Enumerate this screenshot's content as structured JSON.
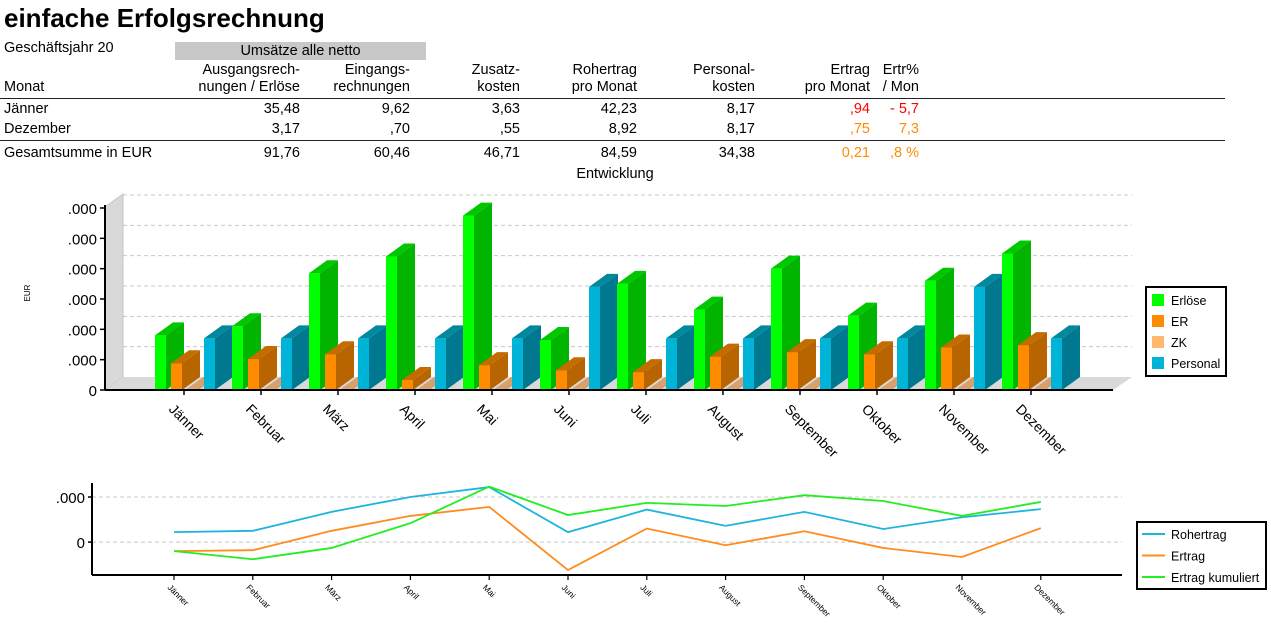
{
  "title": "einfache Erfolgsrechnung",
  "fiscal_year_label": "Geschäftsjahr 20",
  "group_header": "Umsätze alle netto",
  "table": {
    "columns": [
      {
        "line1": "",
        "line2": "Monat"
      },
      {
        "line1": "Ausgangsrech-",
        "line2": "nungen / Erlöse"
      },
      {
        "line1": "Eingangs-",
        "line2": "rechnungen"
      },
      {
        "line1": "Zusatz-",
        "line2": "kosten"
      },
      {
        "line1": "Rohertrag",
        "line2": "pro Monat"
      },
      {
        "line1": "Personal-",
        "line2": "kosten"
      },
      {
        "line1": "Ertrag",
        "line2": "pro Monat"
      },
      {
        "line1": "Ertr%",
        "line2": "/ Mon"
      }
    ],
    "rows": [
      {
        "month": "Jänner",
        "cells": [
          "35,48",
          "9,62",
          "3,63",
          "42,23",
          "8,17",
          ",94",
          "- 5,7"
        ],
        "result_color": "#ff0000"
      },
      {
        "month": "Dezember",
        "cells": [
          "3,17",
          ",70",
          ",55",
          "8,92",
          "8,17",
          ",75",
          "7,3"
        ],
        "result_color": "#ff8c00"
      }
    ],
    "total": {
      "label": "Gesamtsumme in EUR",
      "cells": [
        "91,76",
        "60,46",
        "46,71",
        "84,59",
        "34,38",
        "0,21",
        ",8 %"
      ],
      "result_color": "#ff8c00"
    }
  },
  "chart_data": [
    {
      "type": "bar",
      "title": "Entwicklung",
      "xlabel": "",
      "ylabel": "EUR",
      "ylim": [
        0,
        6
      ],
      "y_ticks": [
        {
          "value": 0,
          "label": "0"
        },
        {
          "value": 1,
          "label": ".000"
        },
        {
          "value": 2,
          "label": ".000"
        },
        {
          "value": 3,
          "label": ".000"
        },
        {
          "value": 4,
          "label": ".000"
        },
        {
          "value": 5,
          "label": ".000"
        },
        {
          "value": 6,
          "label": ".000"
        }
      ],
      "grid": true,
      "style": "3d",
      "legend": "right",
      "categories": [
        "Jänner",
        "Februar",
        "März",
        "April",
        "Mai",
        "Juni",
        "Juli",
        "August",
        "September",
        "Oktober",
        "November",
        "Dezember"
      ],
      "series": [
        {
          "name": "Erlöse",
          "color": "#00ff00",
          "side_color": "#00b400",
          "top_color": "#00c800",
          "values": [
            1.8,
            2.1,
            3.85,
            4.4,
            5.75,
            1.65,
            3.5,
            2.65,
            4.0,
            2.45,
            3.6,
            4.5
          ]
        },
        {
          "name": "ER",
          "color": "#ff8c00",
          "side_color": "#b86400",
          "top_color": "#c46c00",
          "values": [
            0.88,
            1.02,
            1.18,
            0.33,
            0.82,
            0.65,
            0.59,
            1.1,
            1.25,
            1.18,
            1.4,
            1.48
          ]
        },
        {
          "name": "ZK",
          "color": "#ffb870",
          "side_color": "#c8905a",
          "top_color": "#d8a06a",
          "values": [
            0.04,
            0.04,
            0.04,
            0.04,
            0.04,
            0.04,
            0.04,
            0.04,
            0.04,
            0.04,
            0.04,
            0.04
          ]
        },
        {
          "name": "Personal",
          "color": "#00b4d8",
          "side_color": "#007890",
          "top_color": "#00889e",
          "values": [
            1.7,
            1.7,
            1.7,
            1.7,
            1.7,
            3.4,
            1.7,
            1.7,
            1.7,
            1.7,
            3.4,
            1.7
          ]
        }
      ]
    },
    {
      "type": "line",
      "title": "",
      "xlabel": "",
      "ylabel": "",
      "ylim": [
        -0.73,
        1.31
      ],
      "y_ticks": [
        {
          "value": 0,
          "label": "0"
        },
        {
          "value": 1,
          "label": ".000"
        }
      ],
      "grid": true,
      "legend": "right",
      "categories": [
        "Jänner",
        "Februar",
        "März",
        "April",
        "Mai",
        "Juni",
        "Juli",
        "August",
        "September",
        "Oktober",
        "November",
        "Dezember"
      ],
      "series": [
        {
          "name": "Rohertrag",
          "color": "#1eb4dc",
          "values": [
            0.22,
            0.25,
            0.67,
            1.0,
            1.22,
            0.22,
            0.72,
            0.36,
            0.67,
            0.29,
            0.55,
            0.73
          ]
        },
        {
          "name": "Ertrag",
          "color": "#ff8c1e",
          "values": [
            -0.2,
            -0.18,
            0.25,
            0.58,
            0.78,
            -0.62,
            0.3,
            -0.07,
            0.24,
            -0.13,
            -0.33,
            0.31
          ]
        },
        {
          "name": "Ertrag kumuliert",
          "color": "#22ee22",
          "values": [
            -0.2,
            -0.38,
            -0.13,
            0.42,
            1.23,
            0.6,
            0.87,
            0.8,
            1.04,
            0.91,
            0.58,
            0.89
          ]
        }
      ]
    }
  ]
}
